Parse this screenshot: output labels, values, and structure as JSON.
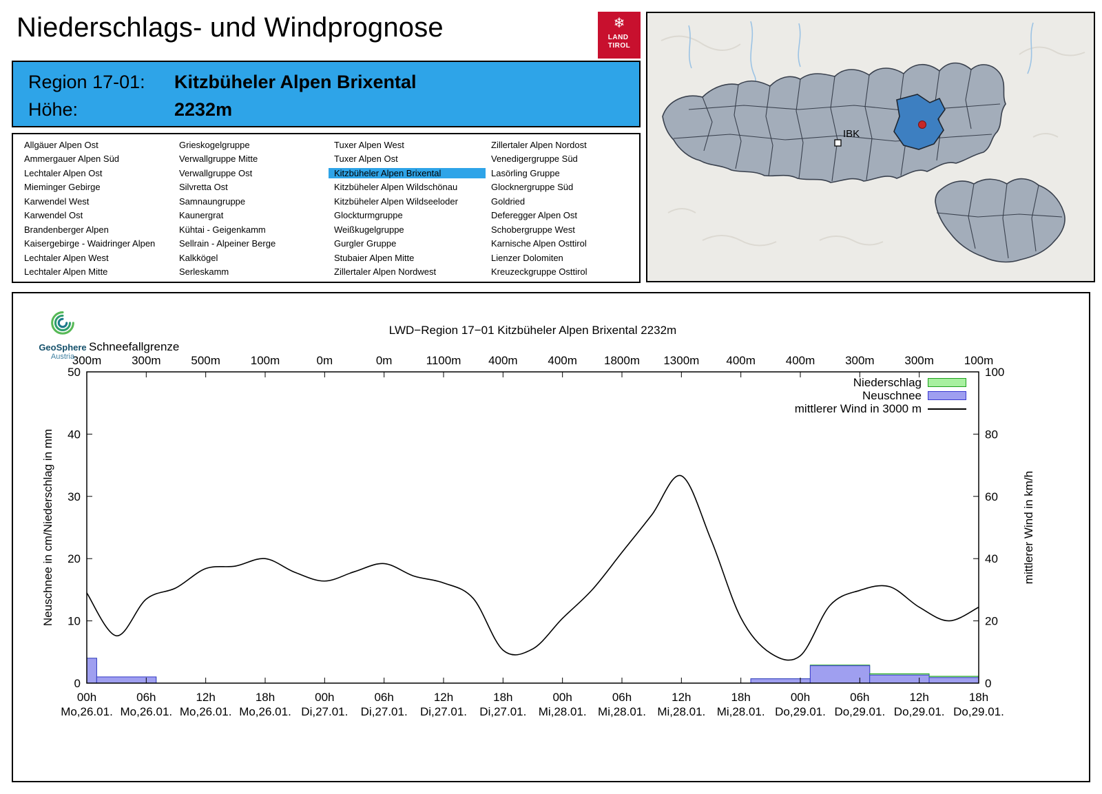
{
  "header": {
    "title": "Niederschlags- und Windprognose",
    "logo": {
      "emblem": "❄",
      "line1": "LAND",
      "line2": "TIROL",
      "color": "#c8102e"
    }
  },
  "region_info": {
    "region_label": "Region 17-01:",
    "region_value": "Kitzbüheler Alpen Brixental",
    "altitude_label": "Höhe:",
    "altitude_value": "2232m",
    "bg_color": "#2ea4e8"
  },
  "region_list": {
    "selected": "Kitzbüheler Alpen Brixental",
    "highlight_color": "#2ea4e8",
    "columns": [
      [
        "Allgäuer Alpen Ost",
        "Ammergauer Alpen Süd",
        "Lechtaler Alpen Ost",
        "Mieminger Gebirge",
        "Karwendel West",
        "Karwendel Ost",
        "Brandenberger Alpen",
        "Kaisergebirge - Waidringer Alpen",
        "Lechtaler Alpen West",
        "Lechtaler Alpen Mitte"
      ],
      [
        "Grieskogelgruppe",
        "Verwallgruppe Mitte",
        "Verwallgruppe Ost",
        "Silvretta Ost",
        "Samnaungruppe",
        "Kaunergrat",
        "Kühtai - Geigenkamm",
        "Sellrain - Alpeiner Berge",
        "Kalkkögel",
        "Serleskamm"
      ],
      [
        "Tuxer Alpen West",
        "Tuxer Alpen Ost",
        "Kitzbüheler Alpen Brixental",
        "Kitzbüheler Alpen Wildschönau",
        "Kitzbüheler Alpen Wildseeloder",
        "Glockturmgruppe",
        "Weißkugelgruppe",
        "Gurgler Gruppe",
        "Stubaier Alpen Mitte",
        "Zillertaler Alpen Nordwest"
      ],
      [
        "Zillertaler Alpen Nordost",
        "Venedigergruppe Süd",
        "Lasörling Gruppe",
        "Glocknergruppe Süd",
        "Goldried",
        "Deferegger Alpen Ost",
        "Schobergruppe West",
        "Karnische Alpen Osttirol",
        "Lienzer Dolomiten",
        "Kreuzeckgruppe Osttirol"
      ]
    ]
  },
  "map": {
    "city_label": "IBK"
  },
  "geosphere": {
    "name": "GeoSphere",
    "subtitle": "Austria"
  },
  "chart_data": {
    "type": "line+bar",
    "title": "LWD−Region 17−01 Kitzbüheler Alpen Brixental 2232m",
    "snowline": {
      "label": "Schneefallgrenze",
      "values": [
        "300m",
        "300m",
        "500m",
        "100m",
        "0m",
        "0m",
        "1100m",
        "400m",
        "400m",
        "1800m",
        "1300m",
        "400m",
        "400m",
        "300m",
        "300m",
        "100m"
      ]
    },
    "x_ticks": [
      {
        "time": "00h",
        "date": "Mo,26.01."
      },
      {
        "time": "06h",
        "date": "Mo,26.01."
      },
      {
        "time": "12h",
        "date": "Mo,26.01."
      },
      {
        "time": "18h",
        "date": "Mo,26.01."
      },
      {
        "time": "00h",
        "date": "Di,27.01."
      },
      {
        "time": "06h",
        "date": "Di,27.01."
      },
      {
        "time": "12h",
        "date": "Di,27.01."
      },
      {
        "time": "18h",
        "date": "Di,27.01."
      },
      {
        "time": "00h",
        "date": "Mi,28.01."
      },
      {
        "time": "06h",
        "date": "Mi,28.01."
      },
      {
        "time": "12h",
        "date": "Mi,28.01."
      },
      {
        "time": "18h",
        "date": "Mi,28.01."
      },
      {
        "time": "00h",
        "date": "Do,29.01."
      },
      {
        "time": "06h",
        "date": "Do,29.01."
      },
      {
        "time": "12h",
        "date": "Do,29.01."
      },
      {
        "time": "18h",
        "date": "Do,29.01."
      }
    ],
    "time_span_hours": 90,
    "tick_interval_hours": 6,
    "y_left": {
      "label": "Neuschnee in cm/Niederschlag in mm",
      "min": 0,
      "max": 50,
      "ticks": [
        0,
        10,
        20,
        30,
        40,
        50
      ]
    },
    "y_right": {
      "label": "mittlerer Wind in km/h",
      "min": 0,
      "max": 100,
      "ticks": [
        0,
        20,
        40,
        60,
        80,
        100
      ]
    },
    "legend": [
      {
        "label": "Niederschlag",
        "swatch": "niederschlag"
      },
      {
        "label": "Neuschnee",
        "swatch": "neuschnee"
      },
      {
        "label": "mittlerer Wind in 3000 m",
        "swatch": "wind"
      }
    ],
    "colors": {
      "niederschlag_fill": "#a8f0a0",
      "niederschlag_border": "#1ca01c",
      "neuschnee_fill": "#9f9ff0",
      "neuschnee_border": "#3a3ad0",
      "wind_line": "#000000"
    },
    "wind_series": {
      "name": "mittlerer Wind in 3000 m",
      "unit": "km/h",
      "step_hours": 3,
      "values": [
        29,
        15.2,
        27,
        30.6,
        36.8,
        37.6,
        40,
        35.6,
        32.8,
        35.8,
        38.4,
        34.4,
        32.2,
        27.2,
        10.6,
        11,
        20.8,
        30,
        42,
        54,
        66.6,
        46,
        21,
        9.6,
        8.8,
        25,
        29.8,
        31,
        24.4,
        20,
        24.4
      ]
    },
    "precip_segments": [
      {
        "start": 0,
        "end": 1,
        "niederschlag": 4.0,
        "neuschnee": 4.0
      },
      {
        "start": 1,
        "end": 7,
        "niederschlag": 1.0,
        "neuschnee": 1.0
      },
      {
        "start": 67,
        "end": 73,
        "niederschlag": 0.7,
        "neuschnee": 0.7
      },
      {
        "start": 73,
        "end": 79,
        "niederschlag": 2.9,
        "neuschnee": 2.8
      },
      {
        "start": 79,
        "end": 85,
        "niederschlag": 1.5,
        "neuschnee": 1.3
      },
      {
        "start": 85,
        "end": 90,
        "niederschlag": 1.1,
        "neuschnee": 0.9
      }
    ]
  }
}
